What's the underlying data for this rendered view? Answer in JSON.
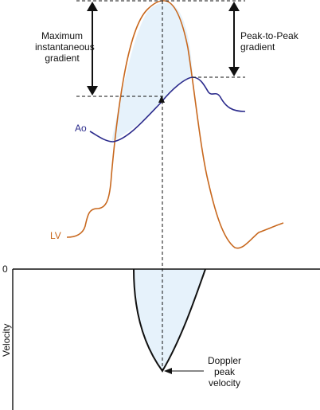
{
  "labels": {
    "max_gradient": [
      "Maximum",
      "instantaneous",
      "gradient"
    ],
    "peak_to_peak": [
      "Peak-to-Peak",
      "gradient"
    ],
    "ao": "Ao",
    "lv": "LV",
    "zero": "0",
    "velocity_axis": "Velocity",
    "doppler": [
      "Doppler",
      "peak",
      "velocity"
    ]
  },
  "colors": {
    "lv_curve": "#c8681e",
    "ao_curve": "#2b2b8c",
    "fill": "#e6f2fb",
    "lines": "#111111"
  }
}
